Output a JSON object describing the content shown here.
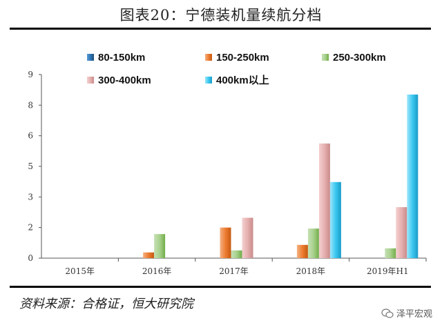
{
  "title": "图表20：宁德装机量续航分档",
  "source": "资料来源：合格证，恒大研究院",
  "watermark": "泽平宏观",
  "chart_data": {
    "type": "bar",
    "categories": [
      "2015年",
      "2016年",
      "2017年",
      "2018年",
      "2019年H1"
    ],
    "ylim": [
      0,
      9
    ],
    "yticks": [
      {
        "label": "0",
        "value": 0
      },
      {
        "label": "2",
        "value": 1.5
      },
      {
        "label": "3",
        "value": 3
      },
      {
        "label": "5",
        "value": 4.5
      },
      {
        "label": "6",
        "value": 6
      },
      {
        "label": "8",
        "value": 7.5
      },
      {
        "label": "9",
        "value": 9
      }
    ],
    "series": [
      {
        "name": "80-150km",
        "color": "#2e75b6",
        "values": [
          0,
          0,
          0,
          0,
          0
        ]
      },
      {
        "name": "150-250km",
        "color": "#ed7d31",
        "values": [
          0,
          0.28,
          1.5,
          0.65,
          0
        ]
      },
      {
        "name": "250-300km",
        "color": "#a9d18e",
        "values": [
          0,
          1.18,
          0.38,
          1.45,
          0.48
        ]
      },
      {
        "name": "300-400km",
        "color": "#e6b0b0",
        "values": [
          0,
          0,
          1.98,
          5.62,
          2.5
        ]
      },
      {
        "name": "400km以上",
        "color": "#3cc8f0",
        "values": [
          0,
          0,
          0,
          3.73,
          8.02
        ]
      }
    ]
  }
}
